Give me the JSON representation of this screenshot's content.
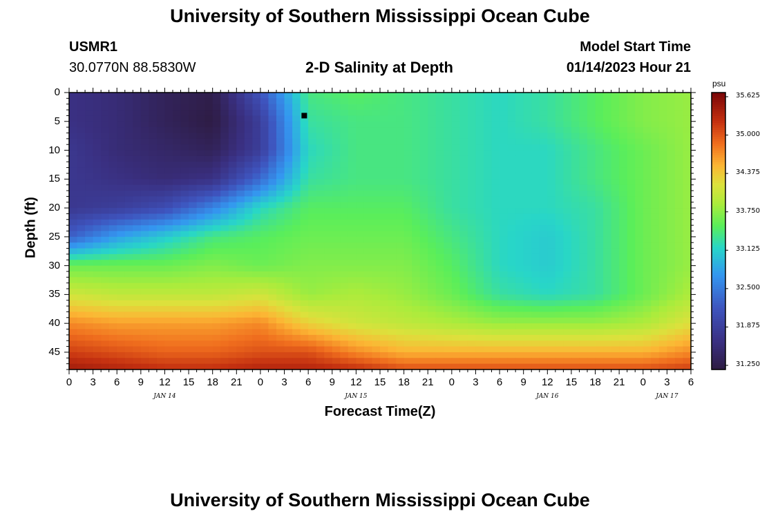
{
  "page": {
    "title": "University of Southern Mississippi Ocean Cube",
    "title_bottom": "University of Southern Mississippi Ocean Cube",
    "station": "USMR1",
    "location": "30.0770N  88.5830W",
    "plot_title": "2-D Salinity at Depth",
    "model_start_label": "Model Start Time",
    "model_start_value": "01/14/2023 Hour 21"
  },
  "chart_data": {
    "type": "heatmap",
    "title": "2-D Salinity at Depth",
    "xlabel": "Forecast Time(Z)",
    "ylabel": "Depth (ft)",
    "x_tick_labels": [
      "0",
      "3",
      "6",
      "9",
      "12",
      "15",
      "18",
      "21",
      "0",
      "3",
      "6",
      "9",
      "12",
      "15",
      "18",
      "21",
      "0",
      "3",
      "6",
      "9",
      "12",
      "15",
      "18",
      "21",
      "0",
      "3",
      "6"
    ],
    "x_date_labels": [
      {
        "label": "JAN 14",
        "tick_index": 4
      },
      {
        "label": "JAN 15",
        "tick_index": 12
      },
      {
        "label": "JAN 16",
        "tick_index": 20
      },
      {
        "label": "JAN 17",
        "tick_index": 25
      }
    ],
    "xlim_hours": [
      0,
      78
    ],
    "y_ticks": [
      0,
      5,
      10,
      15,
      20,
      25,
      30,
      35,
      40,
      45
    ],
    "ylim": [
      0,
      48
    ],
    "y_inverted": true,
    "colorbar": {
      "unit": "psu",
      "range": [
        31.25,
        35.625
      ],
      "ticks": [
        "35.625",
        "35.000",
        "34.375",
        "33.750",
        "33.125",
        "32.500",
        "31.875",
        "31.250"
      ]
    },
    "grid_hours": [
      0,
      6,
      12,
      18,
      24,
      30,
      36,
      42,
      48,
      54,
      60,
      66,
      72,
      78
    ],
    "grid_depths_ft": [
      0,
      5,
      10,
      15,
      20,
      25,
      30,
      35,
      40,
      45,
      48
    ],
    "salinity_grid_psu": [
      [
        31.7,
        31.6,
        31.4,
        31.3,
        32.2,
        33.4,
        33.5,
        33.4,
        33.3,
        33.2,
        33.3,
        33.5,
        33.7,
        33.8
      ],
      [
        31.7,
        31.6,
        31.4,
        31.25,
        31.9,
        33.3,
        33.4,
        33.4,
        33.3,
        33.2,
        33.3,
        33.5,
        33.7,
        33.8
      ],
      [
        31.8,
        31.6,
        31.5,
        31.4,
        31.9,
        33.2,
        33.4,
        33.4,
        33.3,
        33.2,
        33.2,
        33.4,
        33.6,
        33.8
      ],
      [
        31.8,
        31.7,
        31.6,
        31.7,
        32.4,
        33.3,
        33.4,
        33.4,
        33.3,
        33.2,
        33.2,
        33.4,
        33.6,
        33.8
      ],
      [
        31.8,
        31.9,
        32.1,
        32.6,
        33.2,
        33.5,
        33.5,
        33.5,
        33.3,
        33.2,
        33.2,
        33.3,
        33.6,
        33.8
      ],
      [
        32.3,
        32.8,
        33.1,
        33.4,
        33.5,
        33.6,
        33.6,
        33.6,
        33.4,
        33.2,
        33.1,
        33.3,
        33.6,
        33.8
      ],
      [
        33.6,
        33.6,
        33.6,
        33.7,
        33.6,
        33.7,
        33.7,
        33.7,
        33.5,
        33.2,
        33.1,
        33.3,
        33.6,
        33.8
      ],
      [
        34.1,
        34.0,
        34.0,
        34.0,
        34.1,
        33.8,
        33.9,
        33.8,
        33.6,
        33.3,
        33.2,
        33.3,
        33.6,
        33.9
      ],
      [
        34.7,
        34.6,
        34.6,
        34.6,
        34.7,
        34.3,
        34.1,
        34.0,
        33.9,
        33.8,
        33.8,
        33.8,
        33.9,
        34.2
      ],
      [
        35.1,
        35.0,
        34.9,
        34.9,
        35.0,
        35.0,
        34.7,
        34.5,
        34.5,
        34.5,
        34.5,
        34.5,
        34.5,
        34.7
      ],
      [
        35.4,
        35.3,
        35.2,
        35.2,
        35.3,
        35.3,
        35.2,
        35.0,
        35.0,
        35.0,
        35.0,
        35.0,
        35.0,
        35.1
      ]
    ],
    "marker": {
      "hour": 29.5,
      "depth_ft": 4
    }
  }
}
